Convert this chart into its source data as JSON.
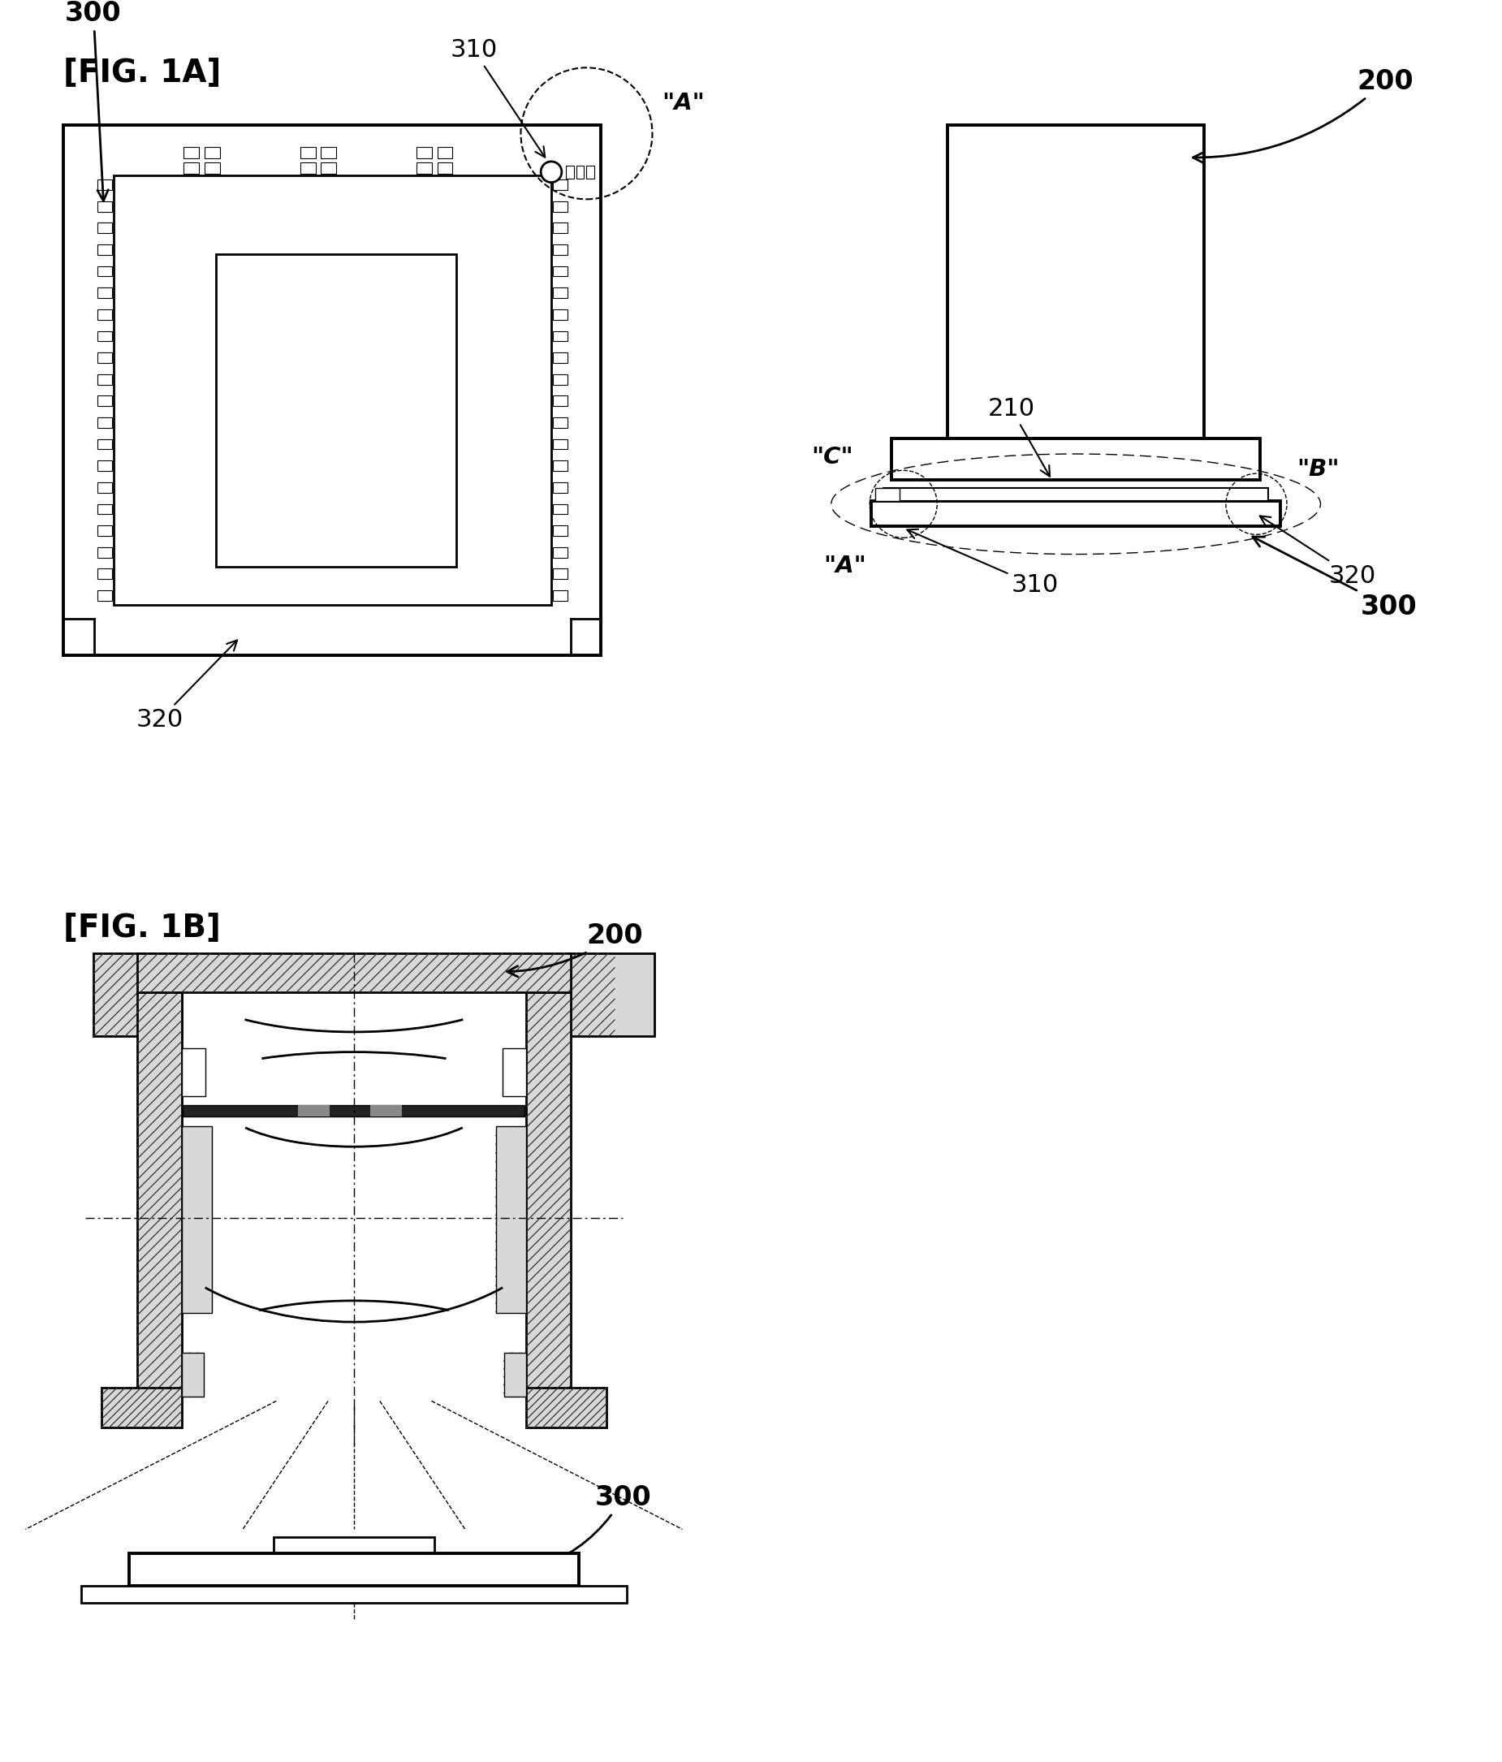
{
  "bg_color": "#ffffff",
  "lc": "#000000",
  "fig1a_label": "[FIG. 1A]",
  "fig1b_label": "[FIG. 1B]",
  "l200": "200",
  "l300": "300",
  "l310": "310",
  "l320": "320",
  "l210": "210",
  "lA": "\"A\"",
  "lB": "\"B\"",
  "lC": "\"C\""
}
